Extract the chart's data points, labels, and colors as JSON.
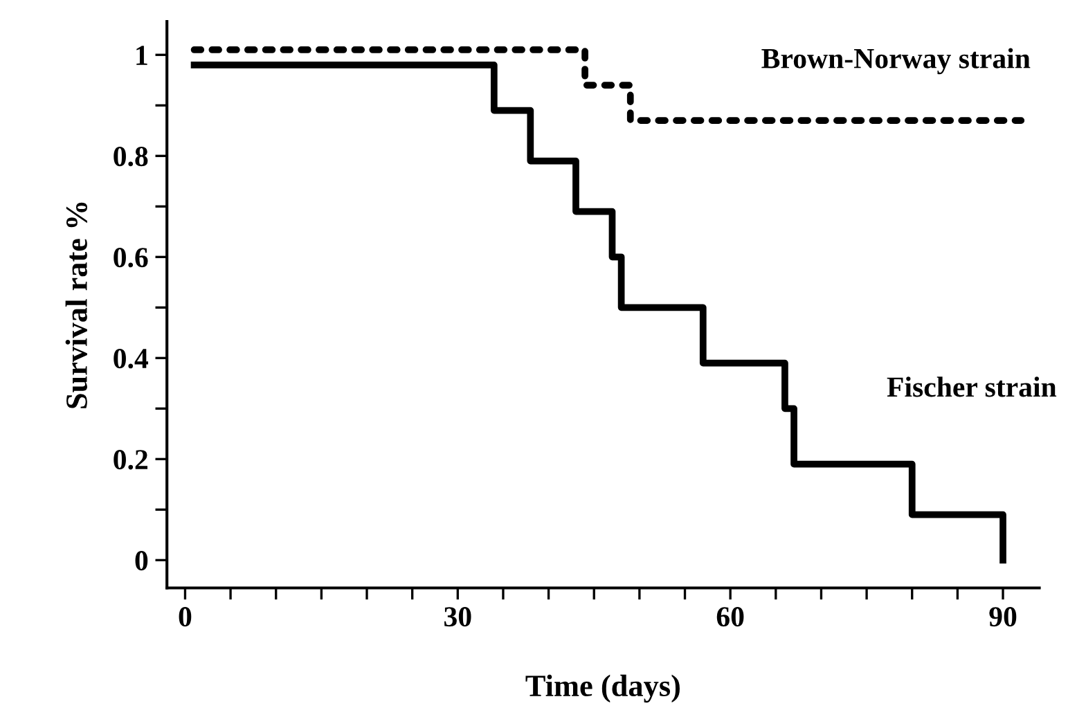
{
  "chart_data": {
    "type": "step",
    "xlabel": "Time (days)",
    "ylabel": "Survival rate %",
    "series": [
      {
        "name": "Brown-Norway strain",
        "color": "#000000",
        "line_style": "dotted",
        "x": [
          1,
          44,
          49,
          92
        ],
        "values": [
          1.01,
          0.94,
          0.87,
          0.87
        ]
      },
      {
        "name": "Fischer strain",
        "color": "#000000",
        "line_style": "solid",
        "x": [
          1,
          34,
          38,
          43,
          47,
          48,
          57,
          66,
          67,
          80,
          90,
          90
        ],
        "values": [
          0.98,
          0.89,
          0.79,
          0.69,
          0.6,
          0.5,
          0.39,
          0.3,
          0.19,
          0.09,
          0,
          0
        ]
      }
    ],
    "xlim": [
      -2,
      94
    ],
    "ylim": [
      -0.055,
      1.066
    ],
    "xticks": [
      0,
      {
        "value": 5,
        "label": null
      },
      {
        "value": 10,
        "label": null
      },
      {
        "value": 15,
        "label": null
      },
      {
        "value": 20,
        "label": null
      },
      {
        "value": 25,
        "label": null
      },
      30,
      {
        "value": 35,
        "label": null
      },
      {
        "value": 40,
        "label": null
      },
      {
        "value": 45,
        "label": null
      },
      {
        "value": 50,
        "label": null
      },
      {
        "value": 55,
        "label": null
      },
      60,
      {
        "value": 65,
        "label": null
      },
      {
        "value": 70,
        "label": null
      },
      {
        "value": 75,
        "label": null
      },
      {
        "value": 80,
        "label": null
      },
      {
        "value": 85,
        "label": null
      },
      90
    ],
    "yticks": [
      0,
      {
        "value": 0.1,
        "label": null
      },
      0.2,
      {
        "value": 0.3,
        "label": null
      },
      0.4,
      {
        "value": 0.5,
        "label": null
      },
      0.6,
      {
        "value": 0.7,
        "label": null
      },
      0.8,
      {
        "value": 0.9,
        "label": null
      },
      1
    ],
    "grid": false,
    "legend": false,
    "marker": "none"
  }
}
